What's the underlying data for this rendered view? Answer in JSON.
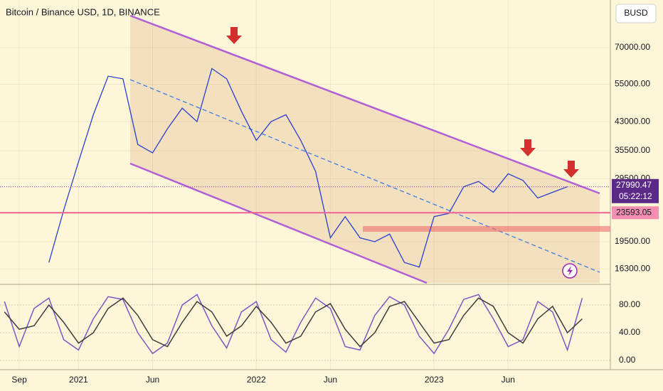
{
  "chart_data": [
    {
      "type": "line",
      "title": "Bitcoin / Binance USD, 1D, BINANCE",
      "currency": "BUSD",
      "x": [
        2,
        3,
        4,
        5,
        6,
        7,
        8,
        9,
        10,
        11,
        12,
        13,
        14,
        15,
        16,
        17,
        18,
        19,
        20,
        21,
        22,
        23,
        24,
        25,
        26,
        27,
        28,
        29,
        30,
        31,
        32,
        33,
        34,
        35,
        36,
        37
      ],
      "values": [
        17000,
        24000,
        33000,
        45000,
        58000,
        57000,
        37000,
        35000,
        41000,
        47000,
        43000,
        61000,
        57000,
        46000,
        38000,
        43000,
        45000,
        38000,
        31000,
        20000,
        23000,
        20000,
        19500,
        20500,
        17000,
        16500,
        23000,
        23500,
        28000,
        29000,
        27000,
        30500,
        29200,
        26000,
        27000,
        28000
      ],
      "color": "#2a3fcf",
      "log_scale": true,
      "xlim": [
        -1.3,
        39.9
      ],
      "xticks": [
        {
          "value": 0,
          "label": "Sep"
        },
        {
          "value": 4,
          "label": "2021"
        },
        {
          "value": 9,
          "label": "Jun"
        },
        {
          "value": 16,
          "label": "2022"
        },
        {
          "value": 21,
          "label": "Jun"
        },
        {
          "value": 28,
          "label": "2023"
        },
        {
          "value": 33,
          "label": "Jun"
        }
      ],
      "ylim": [
        14860,
        95800
      ],
      "yticks": [
        {
          "value": 16300,
          "label": "16300.00"
        },
        {
          "value": 19500,
          "label": "19500.00"
        },
        {
          "value": 29500,
          "label": "29500.00"
        },
        {
          "value": 35500,
          "label": "35500.00"
        },
        {
          "value": 43000,
          "label": "43000.00"
        },
        {
          "value": 55000,
          "label": "55000.00"
        },
        {
          "value": 70000,
          "label": "70000.00"
        }
      ],
      "last_price": 27990.47,
      "countdown": "05:22:12",
      "level": 23593.05
    },
    {
      "type": "line",
      "x": [
        -1,
        0,
        1,
        2,
        3,
        4,
        5,
        6,
        7,
        8,
        9,
        10,
        11,
        12,
        13,
        14,
        15,
        16,
        17,
        18,
        19,
        20,
        21,
        22,
        23,
        24,
        25,
        26,
        27,
        28,
        29,
        30,
        31,
        32,
        33,
        34,
        35,
        36,
        37,
        38
      ],
      "series": [
        {
          "color": "#7e57c2",
          "values": [
            85,
            20,
            75,
            90,
            30,
            15,
            60,
            92,
            88,
            40,
            10,
            25,
            80,
            95,
            50,
            18,
            70,
            85,
            30,
            12,
            55,
            90,
            75,
            20,
            15,
            65,
            92,
            80,
            35,
            10,
            45,
            88,
            95,
            60,
            20,
            30,
            85,
            70,
            15,
            90
          ]
        },
        {
          "color": "#3d3d3d",
          "values": [
            70,
            45,
            50,
            80,
            55,
            25,
            40,
            75,
            90,
            65,
            30,
            20,
            55,
            85,
            70,
            35,
            50,
            78,
            55,
            25,
            35,
            70,
            82,
            45,
            20,
            40,
            78,
            85,
            55,
            25,
            30,
            65,
            90,
            78,
            40,
            25,
            60,
            78,
            40,
            60
          ]
        }
      ],
      "ylim": [
        -13.3,
        107.7
      ],
      "yticks": [
        {
          "value": 0,
          "label": "0.00"
        },
        {
          "value": 40,
          "label": "40.00"
        },
        {
          "value": 80,
          "label": "80.00"
        }
      ]
    }
  ]
}
